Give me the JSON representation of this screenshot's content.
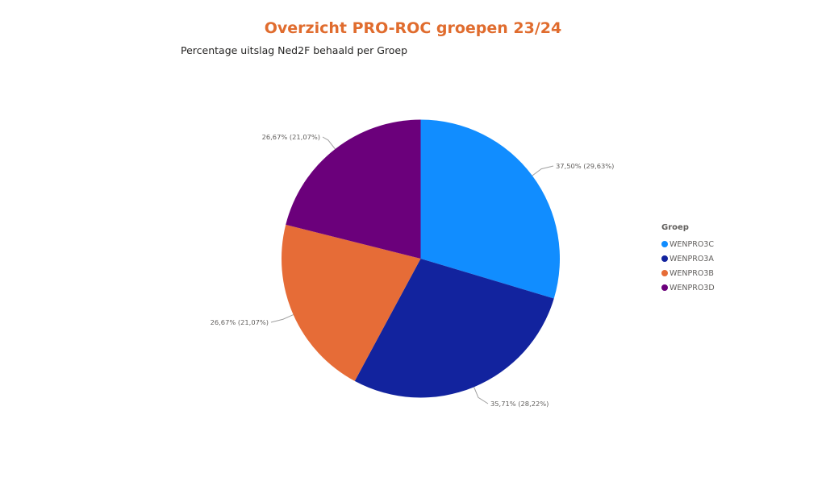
{
  "header": {
    "title": "Overzicht PRO-ROC groepen 23/24",
    "subtitle": "Percentage uitslag Ned2F behaald per Groep"
  },
  "legend": {
    "title": "Groep",
    "items": [
      {
        "label": "WENPRO3C",
        "color": "#118DFF"
      },
      {
        "label": "WENPRO3A",
        "color": "#12239E"
      },
      {
        "label": "WENPRO3B",
        "color": "#E66C37"
      },
      {
        "label": "WENPRO3D",
        "color": "#6B007B"
      }
    ]
  },
  "chart_data": {
    "type": "pie",
    "title": "Percentage uitslag Ned2F behaald per Groep",
    "legend_title": "Groep",
    "legend_position": "right",
    "categories": [
      "WENPRO3C",
      "WENPRO3A",
      "WENPRO3B",
      "WENPRO3D"
    ],
    "values": [
      37.5,
      35.71,
      26.67,
      26.67
    ],
    "shares": [
      29.63,
      28.22,
      21.07,
      21.07
    ],
    "colors": [
      "#118DFF",
      "#12239E",
      "#E66C37",
      "#6B007B"
    ],
    "data_labels": [
      "37,50% (29,63%)",
      "35,71% (28,22%)",
      "26,67% (21,07%)",
      "26,67% (21,07%)"
    ]
  }
}
